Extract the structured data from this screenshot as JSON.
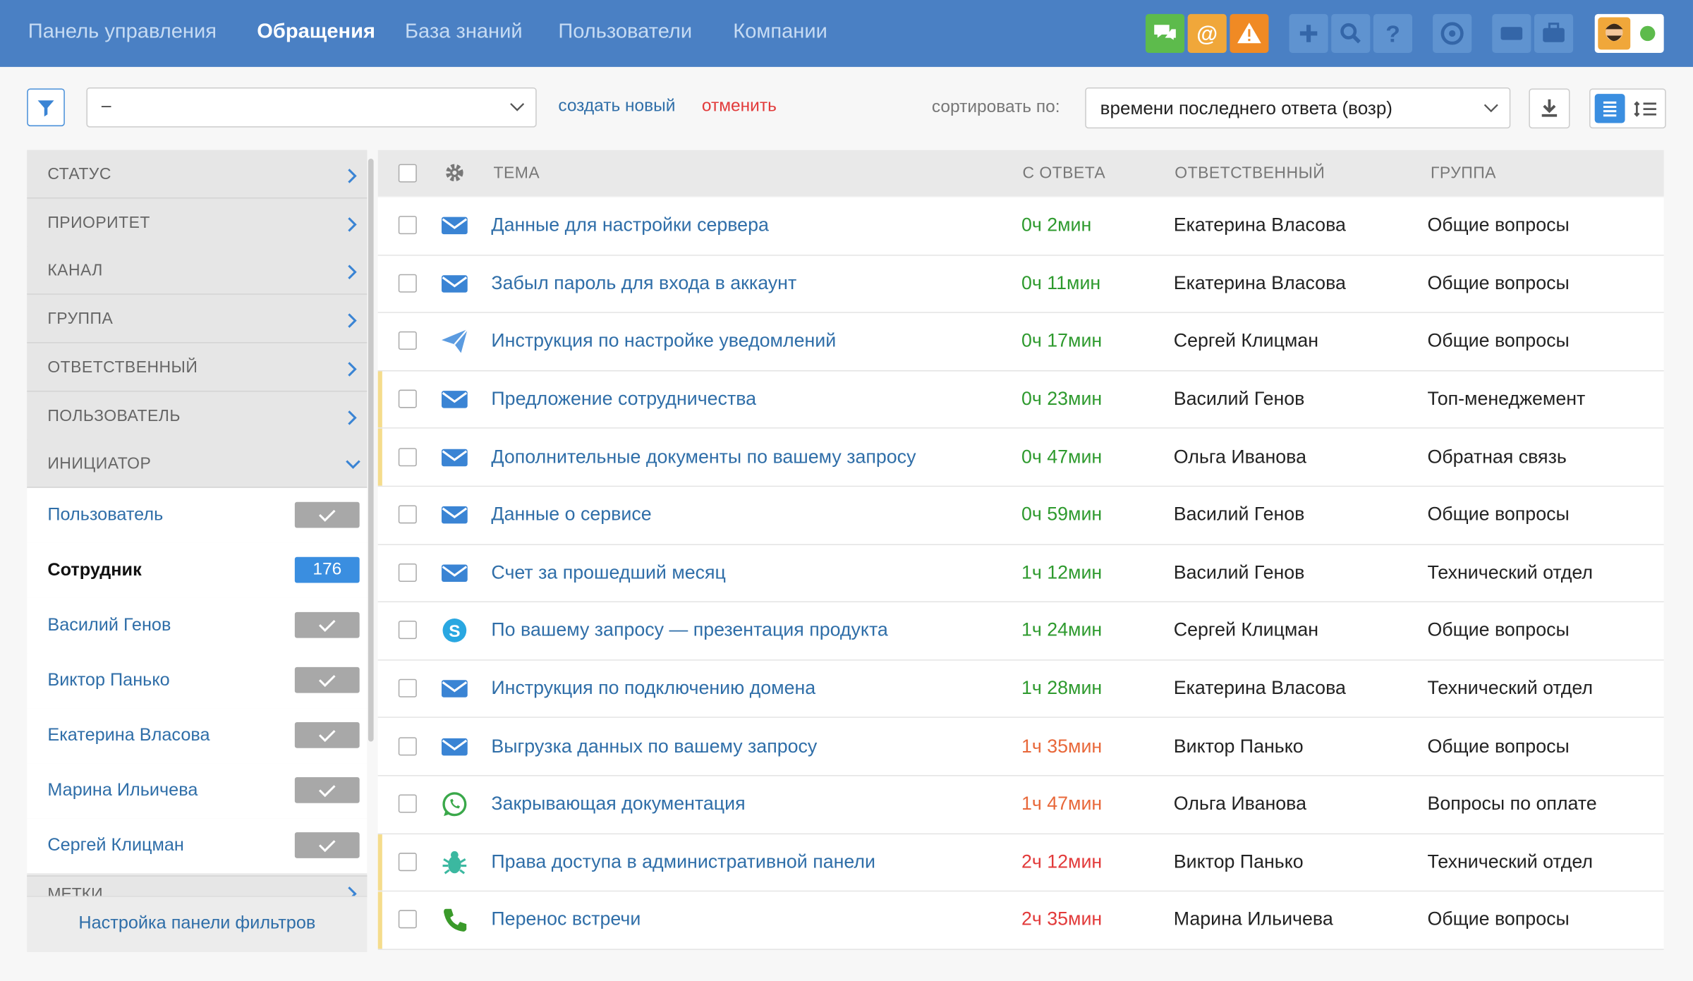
{
  "nav": {
    "items": [
      "Панель управления",
      "Обращения",
      "База знаний",
      "Пользователи",
      "Компании"
    ],
    "active": 1
  },
  "toolbar": {
    "filter_value": "–",
    "create": "создать новый",
    "cancel": "отменить",
    "sort_label": "сортировать по:",
    "sort_value": "времени последнего ответа (возр)"
  },
  "filters": {
    "sections": [
      "СТАТУС",
      "ПРИОРИТЕТ",
      "КАНАЛ",
      "ГРУППА",
      "ОТВЕТСТВЕННЫЙ",
      "ПОЛЬЗОВАТЕЛЬ",
      "ИНИЦИАТОР"
    ],
    "options": [
      {
        "label": "Пользователь"
      },
      {
        "label": "Сотрудник",
        "count": 176
      },
      {
        "label": "Василий Генов"
      },
      {
        "label": "Виктор Панько"
      },
      {
        "label": "Екатерина Власова"
      },
      {
        "label": "Марина Ильичева"
      },
      {
        "label": "Сергей Клицман"
      }
    ],
    "next_section": "МЕТКИ",
    "footer": "Настройка панели фильтров"
  },
  "table": {
    "headers": [
      "ТЕМА",
      "С ОТВЕТА",
      "ОТВЕТСТВЕННЫЙ",
      "ГРУППА"
    ],
    "rows": [
      {
        "channel": "email",
        "subject": "Данные для настройки сервера",
        "time": "0ч 2мин",
        "time_color": "#2e9a2e",
        "assignee": "Екатерина Власова",
        "group": "Общие вопросы",
        "highlight": false
      },
      {
        "channel": "email",
        "subject": "Забыл пароль для входа в аккаунт",
        "time": "0ч 11мин",
        "time_color": "#2e9a2e",
        "assignee": "Екатерина Власова",
        "group": "Общие вопросы",
        "highlight": false
      },
      {
        "channel": "telegram",
        "subject": "Инструкция по настройке уведомлений",
        "time": "0ч 17мин",
        "time_color": "#2e9a2e",
        "assignee": "Сергей Клицман",
        "group": "Общие вопросы",
        "highlight": false
      },
      {
        "channel": "email",
        "subject": "Предложение сотрудничества",
        "time": "0ч 23мин",
        "time_color": "#2e9a2e",
        "assignee": "Василий Генов",
        "group": "Топ-менеджемент",
        "highlight": true
      },
      {
        "channel": "email",
        "subject": "Дополнительные документы по вашему запросу",
        "time": "0ч 47мин",
        "time_color": "#2e9a2e",
        "assignee": "Ольга Иванова",
        "group": "Обратная связь",
        "highlight": true
      },
      {
        "channel": "email",
        "subject": "Данные о сервисе",
        "time": "0ч 59мин",
        "time_color": "#2e9a2e",
        "assignee": "Василий Генов",
        "group": "Общие вопросы",
        "highlight": false
      },
      {
        "channel": "email",
        "subject": "Счет за прошедший месяц",
        "time": "1ч 12мин",
        "time_color": "#2e9a2e",
        "assignee": "Василий Генов",
        "group": "Технический отдел",
        "highlight": false
      },
      {
        "channel": "skype",
        "subject": "По вашему запросу — презентация продукта",
        "time": "1ч 24мин",
        "time_color": "#2e9a2e",
        "assignee": "Сергей Клицман",
        "group": "Общие вопросы",
        "highlight": false
      },
      {
        "channel": "email",
        "subject": "Инструкция по подключению домена",
        "time": "1ч 28мин",
        "time_color": "#2e9a2e",
        "assignee": "Екатерина Власова",
        "group": "Технический отдел",
        "highlight": false
      },
      {
        "channel": "email",
        "subject": "Выгрузка данных по вашему запросу",
        "time": "1ч 35мин",
        "time_color": "#e8683a",
        "assignee": "Виктор Панько",
        "group": "Общие вопросы",
        "highlight": false
      },
      {
        "channel": "whatsapp",
        "subject": "Закрывающая документация",
        "time": "1ч 47мин",
        "time_color": "#e8683a",
        "assignee": "Ольга Иванова",
        "group": "Вопросы по оплате",
        "highlight": false
      },
      {
        "channel": "bug",
        "subject": "Права доступа в административной панели",
        "time": "2ч 12мин",
        "time_color": "#e23a3a",
        "assignee": "Виктор Панько",
        "group": "Технический отдел",
        "highlight": true
      },
      {
        "channel": "phone",
        "subject": "Перенос встречи",
        "time": "2ч 35мин",
        "time_color": "#e23a3a",
        "assignee": "Марина Ильичева",
        "group": "Общие вопросы",
        "highlight": true
      }
    ]
  }
}
